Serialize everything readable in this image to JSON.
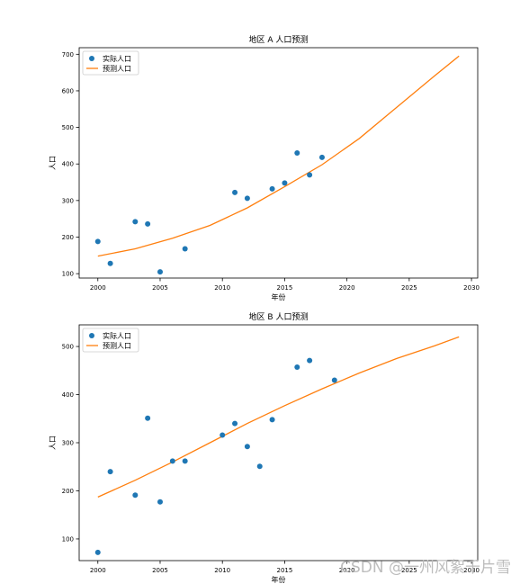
{
  "colors": {
    "actual": "#1f77b4",
    "predicted": "#ff7f0e",
    "axis": "#000000"
  },
  "watermark": "CSDN @一州风絮千片雪",
  "chart_data": [
    {
      "type": "scatter",
      "title": "地区 A 人口预测",
      "xlabel": "年份",
      "ylabel": "人口",
      "xlim": [
        1998.5,
        2030.5
      ],
      "ylim": [
        88,
        718
      ],
      "xticks": [
        2000,
        2005,
        2010,
        2015,
        2020,
        2025,
        2030
      ],
      "yticks": [
        100,
        200,
        300,
        400,
        500,
        600,
        700
      ],
      "legend_position": "upper-left",
      "legend": [
        "实际人口",
        "预测人口"
      ],
      "series": [
        {
          "name": "实际人口",
          "kind": "points",
          "x": [
            2000,
            2001,
            2003,
            2004,
            2005,
            2007,
            2011,
            2012,
            2014,
            2015,
            2016,
            2017,
            2018
          ],
          "y": [
            188,
            128,
            242,
            236,
            105,
            168,
            322,
            306,
            332,
            348,
            430,
            370,
            418
          ]
        },
        {
          "name": "预测人口",
          "kind": "line",
          "x": [
            2000,
            2003,
            2006,
            2009,
            2012,
            2015,
            2018,
            2021,
            2024,
            2027,
            2029
          ],
          "y": [
            148,
            168,
            197,
            232,
            280,
            338,
            398,
            470,
            555,
            640,
            695
          ]
        }
      ]
    },
    {
      "type": "scatter",
      "title": "地区 B 人口预测",
      "xlabel": "年份",
      "ylabel": "人口",
      "xlim": [
        1998.5,
        2030.5
      ],
      "ylim": [
        55,
        545
      ],
      "xticks": [
        2000,
        2005,
        2010,
        2015,
        2020,
        2025,
        2030
      ],
      "yticks": [
        100,
        200,
        300,
        400,
        500
      ],
      "legend_position": "upper-left",
      "legend": [
        "实际人口",
        "预测人口"
      ],
      "series": [
        {
          "name": "实际人口",
          "kind": "points",
          "x": [
            2000,
            2001,
            2003,
            2004,
            2005,
            2006,
            2007,
            2010,
            2011,
            2012,
            2013,
            2014,
            2016,
            2017,
            2019
          ],
          "y": [
            72,
            240,
            191,
            351,
            177,
            262,
            262,
            316,
            340,
            292,
            251,
            348,
            457,
            471,
            430
          ]
        },
        {
          "name": "预测人口",
          "kind": "line",
          "x": [
            2000,
            2003,
            2006,
            2009,
            2012,
            2015,
            2018,
            2021,
            2024,
            2027,
            2029
          ],
          "y": [
            187,
            222,
            260,
            300,
            340,
            377,
            412,
            445,
            475,
            501,
            520
          ]
        }
      ]
    }
  ]
}
